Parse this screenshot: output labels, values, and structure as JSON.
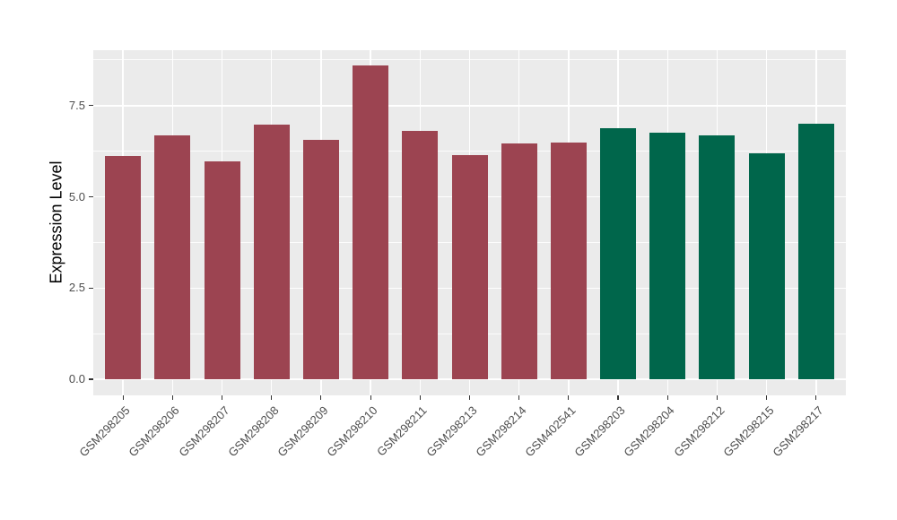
{
  "figure": {
    "background": "#ffffff",
    "title": ""
  },
  "chart_data": {
    "type": "bar",
    "title": "",
    "xlabel": "",
    "ylabel": "Expression Level",
    "categories": [
      "GSM298205",
      "GSM298206",
      "GSM298207",
      "GSM298208",
      "GSM298209",
      "GSM298210",
      "GSM298211",
      "GSM298213",
      "GSM298214",
      "GSM402541",
      "GSM298203",
      "GSM298204",
      "GSM298212",
      "GSM298215",
      "GSM298217"
    ],
    "values": [
      6.11,
      6.68,
      5.97,
      6.98,
      6.56,
      8.6,
      6.81,
      6.14,
      6.46,
      6.48,
      6.88,
      6.76,
      6.68,
      6.19,
      7.0
    ],
    "bar_colors": [
      "#9C4451",
      "#9C4451",
      "#9C4451",
      "#9C4451",
      "#9C4451",
      "#9C4451",
      "#9C4451",
      "#9C4451",
      "#9C4451",
      "#9C4451",
      "#00664B",
      "#00664B",
      "#00664B",
      "#00664B",
      "#00664B"
    ],
    "group_colors": {
      "left-group": "#9C4451",
      "right-group": "#00664B"
    },
    "yticks": [
      0,
      2.5,
      5,
      7.5
    ],
    "ytick_labels": [
      "0.0",
      "2.5",
      "5.0",
      "7.5"
    ],
    "yticks_minor": [
      1.25,
      3.75,
      6.25,
      8.75
    ],
    "ylim": [
      0,
      9.0
    ],
    "grid": "on",
    "legend": "none",
    "panel_background": "#EBEBEB",
    "grid_color": "#FFFFFF",
    "axis_text_color": "#4D4D4D",
    "x_label_angle_deg": 45
  }
}
